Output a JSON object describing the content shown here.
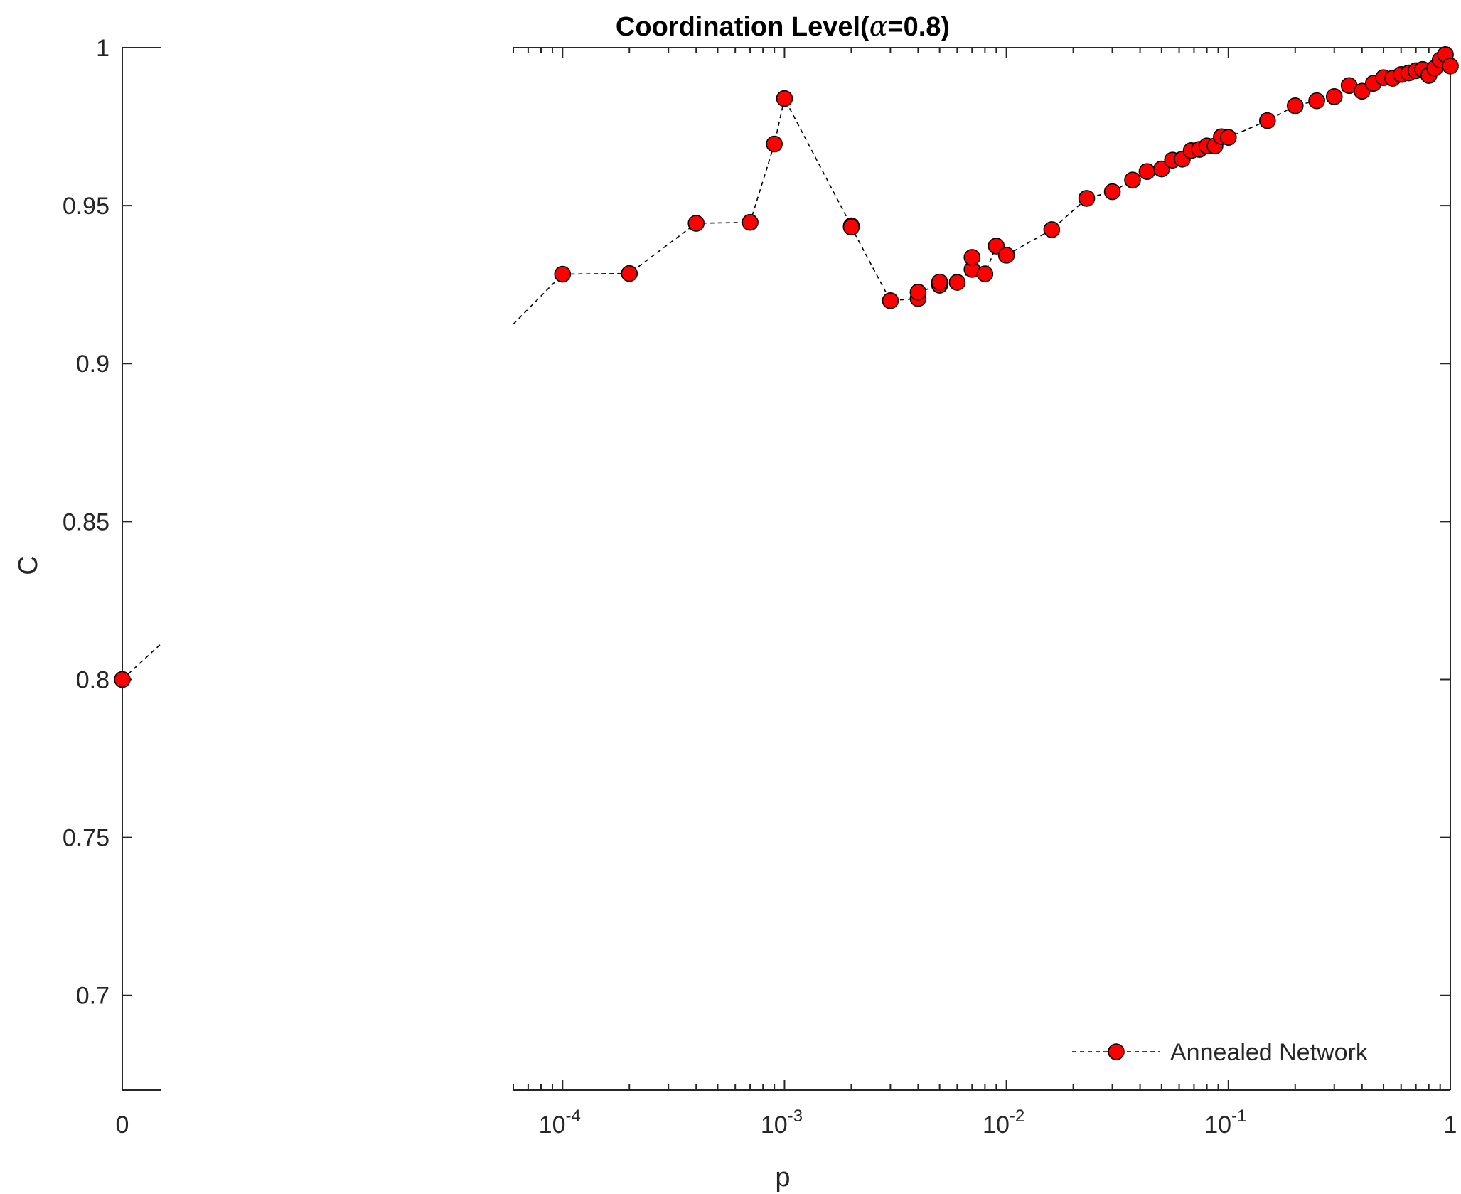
{
  "chart_data": {
    "type": "scatter",
    "title": "Coordination Level(α=0.8)",
    "title_parts": {
      "prefix": "Coordination Level(",
      "symbol": "α",
      "suffix": "=0.8)"
    },
    "xlabel": "p",
    "ylabel": "C",
    "x_scale": "broken-axis: linear segment at 0, log segment from ~6e-5 to 1",
    "ylim": [
      0.67,
      1.0
    ],
    "yticks": [
      0.7,
      0.75,
      0.8,
      0.85,
      0.9,
      0.95,
      1
    ],
    "ytick_labels": [
      "0.7",
      "0.75",
      "0.8",
      "0.85",
      "0.9",
      "0.95",
      "1"
    ],
    "left_segment": {
      "xtick_labels": [
        "0"
      ]
    },
    "log_segment": {
      "xlim": [
        6e-05,
        1
      ],
      "xticks": [
        0.0001,
        0.001,
        0.01,
        0.1,
        1
      ],
      "xtick_labels": [
        {
          "base": "10",
          "exp": "-4"
        },
        {
          "base": "10",
          "exp": "-3"
        },
        {
          "base": "10",
          "exp": "-2"
        },
        {
          "base": "10",
          "exp": "-1"
        },
        {
          "base": "1",
          "exp": ""
        }
      ]
    },
    "legend": {
      "position": "bottom-right",
      "entry": "Annealed Network"
    },
    "marker_color": "#ff0000",
    "series": [
      {
        "name": "Annealed Network",
        "x": [
          0,
          0.0001,
          0.0002,
          0.0004,
          0.0007,
          0.0009,
          0.001,
          0.002,
          0.002,
          0.003,
          0.004,
          0.004,
          0.005,
          0.005,
          0.006,
          0.007,
          0.007,
          0.008,
          0.009,
          0.01,
          0.016,
          0.023,
          0.03,
          0.037,
          0.043,
          0.05,
          0.056,
          0.062,
          0.068,
          0.074,
          0.08,
          0.087,
          0.093,
          0.1,
          0.15,
          0.2,
          0.25,
          0.3,
          0.35,
          0.4,
          0.45,
          0.5,
          0.55,
          0.6,
          0.65,
          0.7,
          0.75,
          0.8,
          0.85,
          0.9,
          0.95,
          1.0
        ],
        "y": [
          0.8,
          0.9283,
          0.9285,
          0.9444,
          0.9447,
          0.9695,
          0.9839,
          0.9436,
          0.9432,
          0.9199,
          0.9206,
          0.9226,
          0.9248,
          0.9258,
          0.9257,
          0.9298,
          0.9336,
          0.9284,
          0.9372,
          0.9343,
          0.9424,
          0.9523,
          0.9544,
          0.9581,
          0.9608,
          0.9616,
          0.9644,
          0.9647,
          0.9674,
          0.9678,
          0.9689,
          0.9689,
          0.9718,
          0.9716,
          0.9769,
          0.9816,
          0.9832,
          0.9845,
          0.988,
          0.9862,
          0.9887,
          0.9905,
          0.9903,
          0.9915,
          0.992,
          0.9927,
          0.9931,
          0.9912,
          0.9935,
          0.9961,
          0.9978,
          0.9942
        ]
      }
    ]
  }
}
